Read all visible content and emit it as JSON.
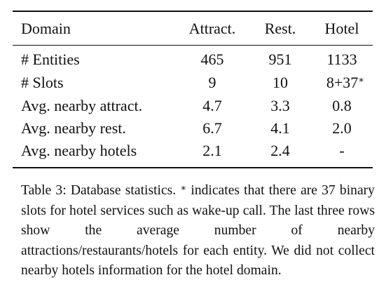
{
  "table": {
    "header": [
      "Domain",
      "Attract.",
      "Rest.",
      "Hotel"
    ],
    "rows": [
      [
        "# Entities",
        "465",
        "951",
        "1133"
      ],
      [
        "# Slots",
        "9",
        "10",
        {
          "text": "8+37",
          "sup": "∗"
        }
      ],
      [
        "Avg. nearby attract.",
        "4.7",
        "3.3",
        "0.8"
      ],
      [
        "Avg. nearby rest.",
        "6.7",
        "4.1",
        "2.0"
      ],
      [
        "Avg. nearby hotels",
        "2.1",
        "2.4",
        "-"
      ]
    ]
  },
  "caption": {
    "label": "Table 3:",
    "lead": "Database statistics.",
    "sup": "∗",
    "text": "indicates that there are 37 binary slots for hotel services such as wake-up call. The last three rows show the average number of nearby attractions/restaurants/hotels for each entity.  We did not collect nearby hotels information for the hotel domain."
  }
}
